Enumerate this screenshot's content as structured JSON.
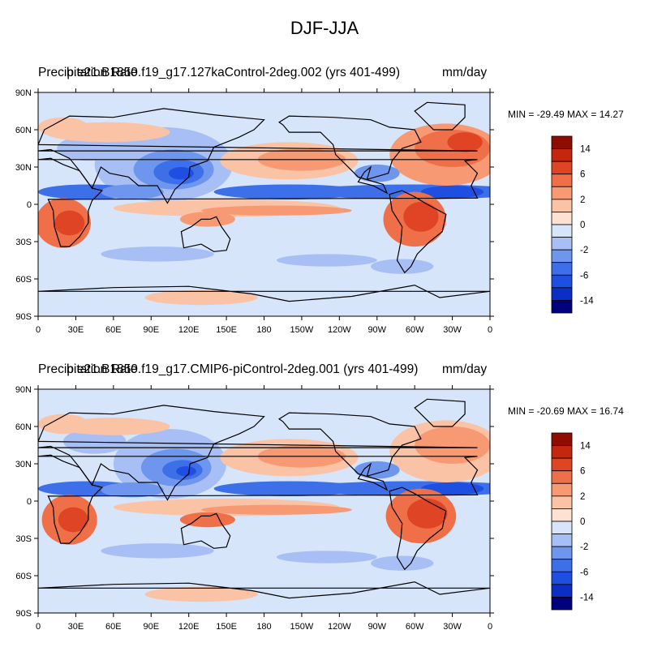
{
  "figure": {
    "title": "DJF-JJA"
  },
  "colors": {
    "levels": [
      "#00007f",
      "#0b2ec4",
      "#1e4fe0",
      "#3c6fe8",
      "#6f96ee",
      "#a7bff4",
      "#d6e5fa",
      "#fde2d3",
      "#fbc3a6",
      "#f79a74",
      "#ef6f48",
      "#df4524",
      "#c4260e",
      "#8f0c00"
    ],
    "ocean_base": "#d6e5fa",
    "coast": "#000000"
  },
  "colorbar": {
    "labels": [
      "14",
      "6",
      "2",
      "0",
      "-2",
      "-6",
      "-14"
    ]
  },
  "axes": {
    "y_ticks": [
      "90N",
      "60N",
      "30N",
      "0",
      "30S",
      "60S",
      "90S"
    ],
    "x_ticks": [
      "0",
      "30E",
      "60E",
      "90E",
      "120E",
      "150E",
      "180",
      "150W",
      "120W",
      "90W",
      "60W",
      "30W",
      "0"
    ]
  },
  "chart_data": [
    {
      "type": "heatmap",
      "title": "DJF-JJA",
      "left_string": "Precipitation Rate",
      "center_string": "b.e21.B1850.f19_g17.127kaControl-2deg.002 (yrs 401-499)",
      "right_string": "mm/day",
      "stats": "MIN = -29.49 MAX =  14.27",
      "min": -29.49,
      "max": 14.27,
      "xlim": [
        0,
        360
      ],
      "ylim": [
        -90,
        90
      ],
      "colorbar_levels": [
        -20,
        -14,
        -10,
        -6,
        -4,
        -2,
        -1,
        0,
        1,
        2,
        4,
        6,
        10,
        14,
        20
      ]
    },
    {
      "type": "heatmap",
      "title": "DJF-JJA",
      "left_string": "Precipitation Rate",
      "center_string": "b.e21.B1850.f19_g17.CMIP6-piControl-2deg.001 (yrs 401-499)",
      "right_string": "mm/day",
      "stats": "MIN = -20.69 MAX =  16.74",
      "min": -20.69,
      "max": 16.74,
      "xlim": [
        0,
        360
      ],
      "ylim": [
        -90,
        90
      ],
      "colorbar_levels": [
        -20,
        -14,
        -10,
        -6,
        -4,
        -2,
        -1,
        0,
        1,
        2,
        4,
        6,
        10,
        14,
        20
      ]
    }
  ]
}
